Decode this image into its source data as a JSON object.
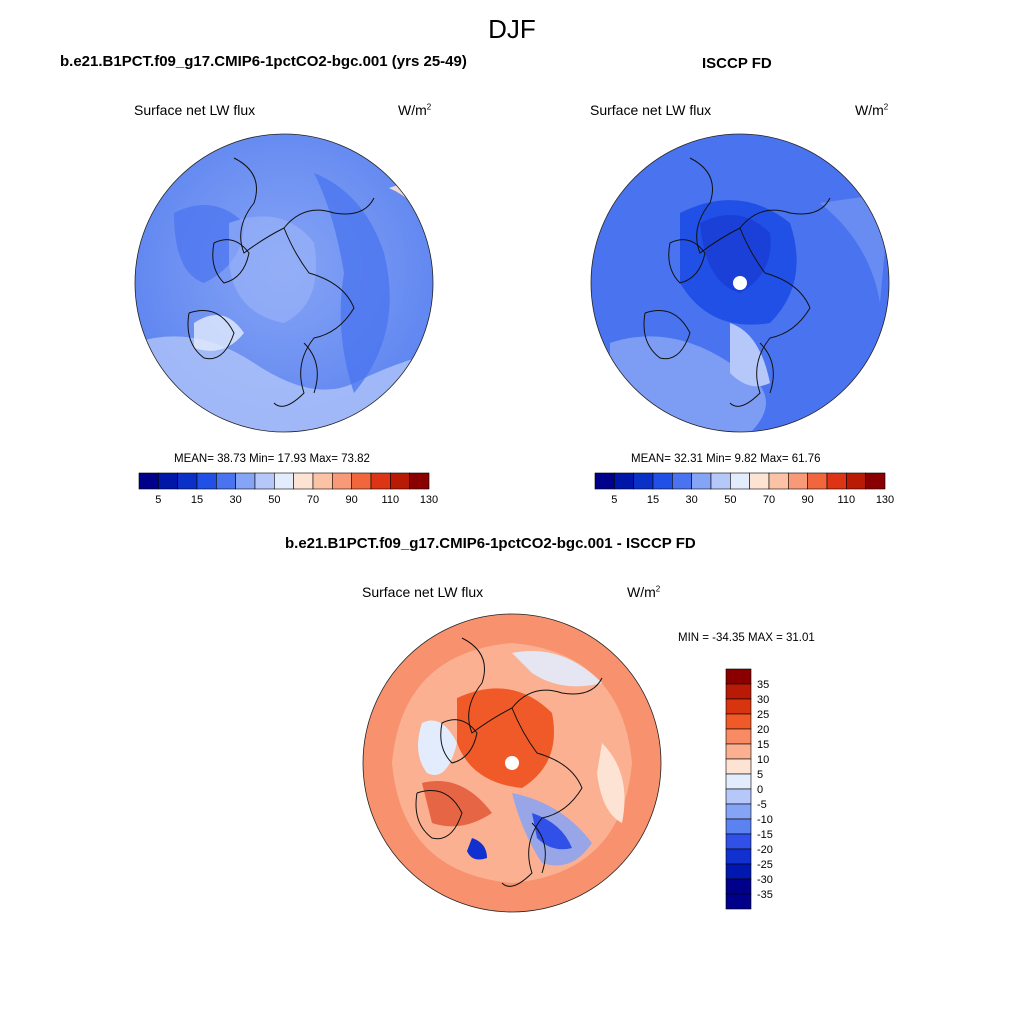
{
  "figure": {
    "title": "DJF",
    "variable": "Surface net LW flux",
    "units": "W/m",
    "units_sup": "2"
  },
  "panels": [
    {
      "title": "b.e21.B1PCT.f09_g17.CMIP6-1pctCO2-bgc.001 (yrs 25-49)",
      "stats_text": "MEAN=  38.73  Min=  17.93  Max=  73.82",
      "colorbar_ticks": [
        "5",
        "15",
        "30",
        "50",
        "70",
        "90",
        "110",
        "130"
      ]
    },
    {
      "title": "ISCCP FD",
      "stats_text": "MEAN=  32.31  Min=   9.82  Max=  61.76",
      "colorbar_ticks": [
        "5",
        "15",
        "30",
        "50",
        "70",
        "90",
        "110",
        "130"
      ]
    },
    {
      "title": "b.e21.B1PCT.f09_g17.CMIP6-1pctCO2-bgc.001 - ISCCP FD",
      "stats_text": "MIN = -34.35 MAX =  31.01",
      "colorbar_ticks": [
        "35",
        "30",
        "25",
        "20",
        "15",
        "10",
        "5",
        "0",
        "-5",
        "-10",
        "-15",
        "-20",
        "-25",
        "-30",
        "-35"
      ]
    }
  ],
  "colormaps": {
    "absolute": [
      "#00008b",
      "#0016a8",
      "#0a30c8",
      "#2050e6",
      "#4a74ef",
      "#86a4f6",
      "#b6c8fa",
      "#e2ecfc",
      "#fde3d4",
      "#fbc2a6",
      "#f89a78",
      "#f2663e",
      "#dc3414",
      "#b81a06",
      "#8a0000"
    ],
    "difference": [
      "#8a0000",
      "#b81a06",
      "#d83410",
      "#f05a28",
      "#f88a64",
      "#fbb092",
      "#fde3d4",
      "#e2ecfc",
      "#b6c8fa",
      "#86a4f6",
      "#5a82f0",
      "#3050e8",
      "#1030d0",
      "#0018b0",
      "#00008b"
    ]
  }
}
